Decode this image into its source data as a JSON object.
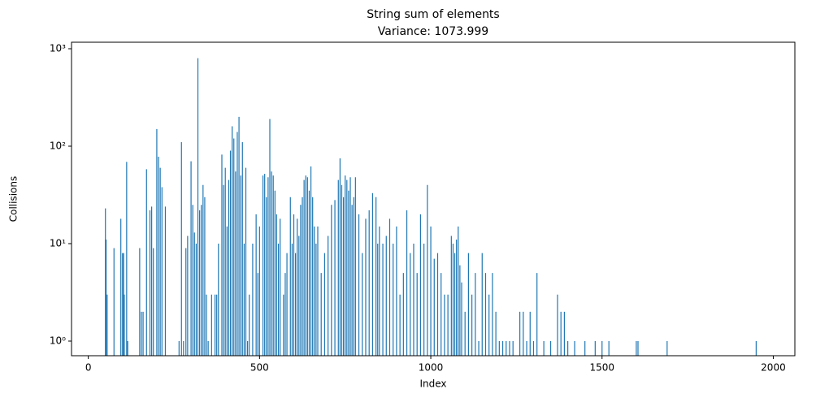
{
  "chart_data": {
    "type": "bar",
    "title": "String sum of elements",
    "subtitle": "Variance: 1073.999",
    "x_label": "Index",
    "y_label": "Collisions",
    "color": "#1f77b4",
    "log_y": true,
    "xlim": [
      -49,
      2063
    ],
    "ylim": [
      0.708,
      1166
    ],
    "xticks": [
      0,
      500,
      1000,
      1500,
      2000
    ],
    "yticks": [
      {
        "value": 1,
        "label": "10⁰"
      },
      {
        "value": 10,
        "label": "10¹"
      },
      {
        "value": 100,
        "label": "10²"
      },
      {
        "value": 1000,
        "label": "10³"
      }
    ],
    "x": [
      50,
      52,
      55,
      75,
      95,
      100,
      103,
      105,
      112,
      115,
      150,
      155,
      160,
      170,
      180,
      185,
      190,
      200,
      205,
      210,
      215,
      225,
      265,
      272,
      278,
      285,
      290,
      300,
      305,
      310,
      315,
      320,
      325,
      330,
      335,
      340,
      345,
      350,
      360,
      370,
      375,
      380,
      390,
      395,
      400,
      405,
      410,
      415,
      420,
      425,
      430,
      435,
      440,
      445,
      450,
      455,
      460,
      465,
      470,
      480,
      490,
      495,
      500,
      510,
      515,
      520,
      525,
      530,
      535,
      540,
      545,
      550,
      555,
      560,
      570,
      575,
      580,
      590,
      595,
      600,
      605,
      610,
      615,
      620,
      625,
      630,
      635,
      640,
      645,
      650,
      655,
      660,
      665,
      670,
      680,
      690,
      700,
      710,
      720,
      730,
      735,
      740,
      745,
      750,
      755,
      760,
      765,
      770,
      775,
      780,
      790,
      800,
      810,
      820,
      830,
      840,
      845,
      850,
      860,
      870,
      880,
      890,
      900,
      910,
      920,
      930,
      940,
      950,
      960,
      970,
      980,
      990,
      1000,
      1010,
      1020,
      1030,
      1040,
      1050,
      1060,
      1065,
      1070,
      1075,
      1080,
      1085,
      1090,
      1100,
      1110,
      1120,
      1130,
      1140,
      1150,
      1160,
      1170,
      1180,
      1190,
      1200,
      1210,
      1220,
      1230,
      1240,
      1260,
      1270,
      1280,
      1290,
      1300,
      1310,
      1330,
      1350,
      1370,
      1380,
      1390,
      1400,
      1420,
      1450,
      1480,
      1500,
      1520,
      1600,
      1605,
      1690,
      1950
    ],
    "values": [
      23,
      11,
      3,
      9,
      18,
      8,
      8,
      3,
      69,
      1,
      9,
      2,
      2,
      58,
      22,
      24,
      9,
      150,
      78,
      60,
      38,
      24,
      1,
      110,
      1,
      9,
      12,
      70,
      25,
      13,
      10,
      800,
      22,
      25,
      40,
      30,
      3,
      1,
      3,
      3,
      3,
      10,
      82,
      40,
      60,
      15,
      45,
      90,
      160,
      120,
      55,
      140,
      200,
      50,
      110,
      10,
      60,
      1,
      3,
      10,
      20,
      5,
      15,
      50,
      52,
      30,
      48,
      190,
      55,
      50,
      35,
      20,
      10,
      18,
      3,
      5,
      8,
      30,
      10,
      20,
      8,
      18,
      12,
      25,
      30,
      45,
      50,
      48,
      35,
      62,
      30,
      15,
      10,
      15,
      5,
      8,
      12,
      25,
      28,
      45,
      75,
      40,
      30,
      50,
      45,
      35,
      48,
      25,
      30,
      48,
      20,
      8,
      18,
      22,
      33,
      30,
      10,
      15,
      10,
      12,
      18,
      10,
      15,
      3,
      5,
      22,
      8,
      10,
      5,
      20,
      10,
      40,
      15,
      7,
      8,
      5,
      3,
      3,
      12,
      10,
      8,
      11,
      15,
      6,
      4,
      2,
      8,
      3,
      5,
      1,
      8,
      5,
      3,
      5,
      2,
      1,
      1,
      1,
      1,
      1,
      2,
      2,
      1,
      2,
      1,
      5,
      1,
      1,
      3,
      2,
      2,
      1,
      1,
      1,
      1,
      1,
      1,
      1,
      1,
      1,
      1
    ]
  }
}
